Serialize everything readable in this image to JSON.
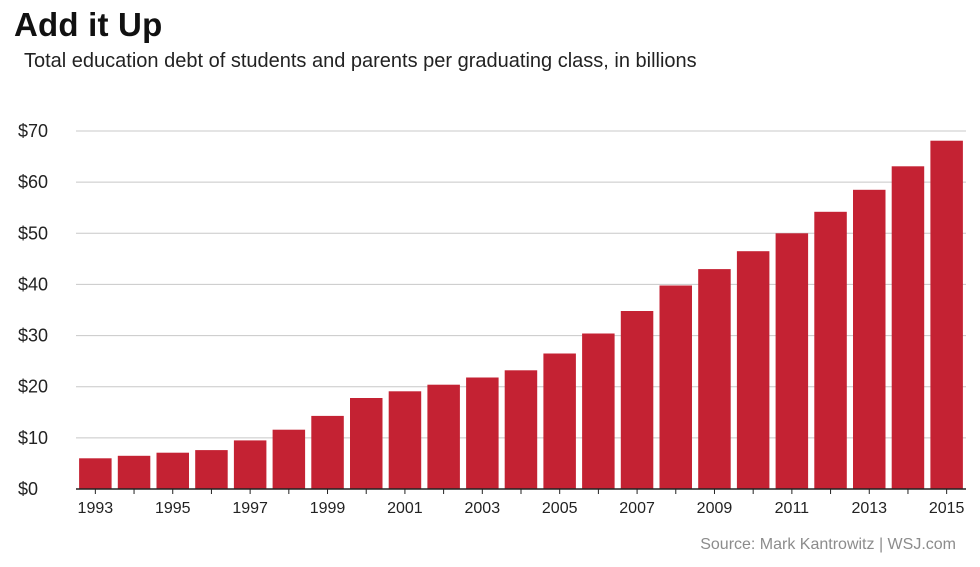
{
  "header": {
    "title": "Add it Up",
    "subtitle": "Total education debt of students and parents per graduating class, in billions"
  },
  "footer": {
    "source": "Source: Mark Kantrowitz  |  WSJ.com"
  },
  "colors": {
    "bar": "#c42233",
    "gridline": "#c8c8c8"
  },
  "chart_data": {
    "type": "bar",
    "title": "Add it Up",
    "subtitle": "Total education debt of students and parents per graduating class, in billions",
    "categories": [
      "1993",
      "1994",
      "1995",
      "1996",
      "1997",
      "1998",
      "1999",
      "2000",
      "2001",
      "2002",
      "2003",
      "2004",
      "2005",
      "2006",
      "2007",
      "2008",
      "2009",
      "2010",
      "2011",
      "2012",
      "2013",
      "2014",
      "2015"
    ],
    "x_tick_labels": [
      "1993",
      "1995",
      "1997",
      "1999",
      "2001",
      "2003",
      "2005",
      "2007",
      "2009",
      "2011",
      "2013",
      "2015"
    ],
    "values": [
      6.0,
      6.5,
      7.1,
      7.6,
      9.5,
      11.6,
      14.3,
      17.8,
      19.1,
      20.4,
      21.8,
      23.2,
      26.5,
      30.4,
      34.8,
      39.8,
      43.0,
      46.5,
      50.0,
      54.2,
      58.5,
      63.1,
      68.1
    ],
    "y_tick_labels": [
      "$0",
      "$10",
      "$20",
      "$30",
      "$40",
      "$50",
      "$60",
      "$70"
    ],
    "ylim": [
      0,
      70
    ],
    "grid": true,
    "xlabel": "",
    "ylabel": ""
  }
}
